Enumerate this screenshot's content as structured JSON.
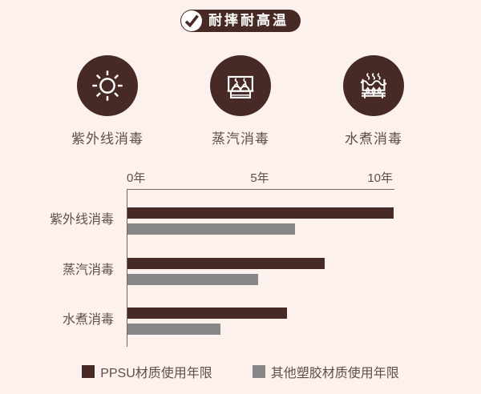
{
  "header": {
    "badge_label": "耐摔耐高温",
    "badge_icon": "checkmark-icon",
    "badge_bg": "#472925"
  },
  "features": {
    "items": [
      {
        "icon": "uv-sun-icon",
        "label": "紫外线消毒"
      },
      {
        "icon": "steam-sterilizer-icon",
        "label": "蒸汽消毒"
      },
      {
        "icon": "boiling-pot-icon",
        "label": "水煮消毒"
      }
    ]
  },
  "chart_data": {
    "type": "bar",
    "orientation": "horizontal",
    "title": "",
    "xlabel": "",
    "ylabel": "",
    "unit": "年",
    "grid": false,
    "legend_position": "bottom",
    "categories": [
      "紫外线消毒",
      "蒸汽消毒",
      "水煮消毒"
    ],
    "series": [
      {
        "name": "PPSU材质使用年限",
        "color": "#472925",
        "values": [
          10,
          7.4,
          6
        ]
      },
      {
        "name": "其他塑胶材质使用年限",
        "color": "#878787",
        "values": [
          6.3,
          4.9,
          3.5
        ]
      }
    ],
    "x_ticks": [
      {
        "value": 0,
        "label": "0年"
      },
      {
        "value": 5,
        "label": "5年"
      },
      {
        "value": 10,
        "label": "10年"
      }
    ],
    "xlim": [
      0,
      10.06
    ]
  },
  "colors": {
    "accent_brown": "#472925",
    "bar_gray": "#878787",
    "background": "#fdf1ee",
    "axis": "#7a615b",
    "text": "#5f4e49"
  }
}
